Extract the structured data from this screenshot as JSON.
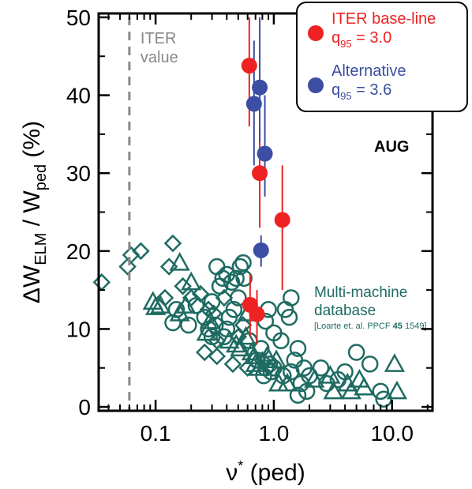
{
  "chart_data": {
    "type": "scatter",
    "x_scale": "log",
    "xlim": [
      0.033,
      22
    ],
    "ylim": [
      -0.5,
      50.5
    ],
    "x_ticks": [
      0.1,
      1.0,
      10.0
    ],
    "x_tick_labels": [
      "0.1",
      "1.0",
      "10.0"
    ],
    "y_ticks": [
      0,
      10,
      20,
      30,
      40,
      50
    ],
    "y_tick_labels": [
      "0",
      "10",
      "20",
      "30",
      "40",
      "50"
    ],
    "xlabel": "ν* (ped)",
    "ylabel": "ΔW_ELM / W_ped (%)",
    "grid": false,
    "legend_position": "top-right",
    "annotations": {
      "iter_value": [
        "ITER",
        "value"
      ],
      "iter_value_x": 0.06,
      "device": "AUG",
      "database_title": [
        "Multi-machine",
        "database"
      ],
      "database_ref_pre": "[Loarte et. al. PPCF ",
      "database_ref_bold": "45",
      "database_ref_post": " 1549]"
    },
    "colors": {
      "iter": "#ee2222",
      "alternative": "#3b4ea3",
      "database": "#1e6b62",
      "iter_line": "#888888"
    },
    "series": [
      {
        "name": "ITER base-line q95 = 3.0",
        "legend": {
          "title": "ITER base-line",
          "q": "q",
          "sub": "95",
          "val": " = 3.0"
        },
        "marker": "filled-circle",
        "points": [
          {
            "x": 0.62,
            "y": 43.8,
            "ylo": 36,
            "yhi": 50
          },
          {
            "x": 0.76,
            "y": 30.0,
            "ylo": 23,
            "yhi": 36
          },
          {
            "x": 1.18,
            "y": 24.0,
            "ylo": 15,
            "yhi": 31
          },
          {
            "x": 0.63,
            "y": 13.1,
            "ylo": 9,
            "yhi": 17
          },
          {
            "x": 0.72,
            "y": 11.9,
            "ylo": 8,
            "yhi": 15
          }
        ]
      },
      {
        "name": "Alternative q95 = 3.6",
        "legend": {
          "title": "Alternative",
          "q": "q",
          "sub": "95",
          "val": " = 3.6"
        },
        "marker": "filled-circle",
        "points": [
          {
            "x": 0.76,
            "y": 41.0,
            "ylo": 34,
            "yhi": 50
          },
          {
            "x": 0.68,
            "y": 38.9,
            "ylo": 31,
            "yhi": 47
          },
          {
            "x": 0.84,
            "y": 32.5,
            "ylo": 27,
            "yhi": 40
          },
          {
            "x": 0.78,
            "y": 20.1,
            "ylo": 18,
            "yhi": 22
          }
        ]
      },
      {
        "name": "Multi-machine database",
        "marker": "open",
        "points": [
          {
            "x": 0.035,
            "y": 16.0,
            "m": "diamond"
          },
          {
            "x": 0.062,
            "y": 19.5,
            "m": "diamond"
          },
          {
            "x": 0.075,
            "y": 20.0,
            "m": "diamond"
          },
          {
            "x": 0.058,
            "y": 18.0,
            "m": "diamond"
          },
          {
            "x": 0.14,
            "y": 21.0,
            "m": "diamond"
          },
          {
            "x": 0.13,
            "y": 18.0,
            "m": "diamond"
          },
          {
            "x": 0.095,
            "y": 13.5,
            "m": "triangle"
          },
          {
            "x": 0.11,
            "y": 13.0,
            "m": "triangle"
          },
          {
            "x": 0.12,
            "y": 14.0,
            "m": "diamond"
          },
          {
            "x": 0.1,
            "y": 12.8,
            "m": "triangle"
          },
          {
            "x": 0.15,
            "y": 12.5,
            "m": "circle"
          },
          {
            "x": 0.17,
            "y": 15.5,
            "m": "diamond"
          },
          {
            "x": 0.18,
            "y": 13.0,
            "m": "triangle"
          },
          {
            "x": 0.2,
            "y": 14.0,
            "m": "diamond"
          },
          {
            "x": 0.22,
            "y": 13.0,
            "m": "circle"
          },
          {
            "x": 0.16,
            "y": 12.0,
            "m": "triangle"
          },
          {
            "x": 0.14,
            "y": 10.8,
            "m": "circle"
          },
          {
            "x": 0.19,
            "y": 10.5,
            "m": "circle"
          },
          {
            "x": 0.24,
            "y": 14.5,
            "m": "diamond"
          },
          {
            "x": 0.2,
            "y": 16.0,
            "m": "triangle"
          },
          {
            "x": 0.16,
            "y": 18.5,
            "m": "triangle"
          },
          {
            "x": 0.26,
            "y": 11.5,
            "m": "circle"
          },
          {
            "x": 0.28,
            "y": 12.5,
            "m": "diamond"
          },
          {
            "x": 0.3,
            "y": 13.5,
            "m": "circle"
          },
          {
            "x": 0.29,
            "y": 11.0,
            "m": "triangle"
          },
          {
            "x": 0.32,
            "y": 10.5,
            "m": "circle"
          },
          {
            "x": 0.31,
            "y": 12.0,
            "m": "diamond"
          },
          {
            "x": 0.27,
            "y": 9.5,
            "m": "triangle"
          },
          {
            "x": 0.28,
            "y": 10.0,
            "m": "circle"
          },
          {
            "x": 0.3,
            "y": 9.0,
            "m": "circle"
          },
          {
            "x": 0.33,
            "y": 8.5,
            "m": "diamond"
          },
          {
            "x": 0.26,
            "y": 7.0,
            "m": "diamond"
          },
          {
            "x": 0.35,
            "y": 15.5,
            "m": "circle"
          },
          {
            "x": 0.37,
            "y": 16.5,
            "m": "circle"
          },
          {
            "x": 0.33,
            "y": 18.0,
            "m": "circle"
          },
          {
            "x": 0.38,
            "y": 14.0,
            "m": "diamond"
          },
          {
            "x": 0.4,
            "y": 17.0,
            "m": "circle"
          },
          {
            "x": 0.44,
            "y": 16.0,
            "m": "circle"
          },
          {
            "x": 0.48,
            "y": 16.5,
            "m": "circle"
          },
          {
            "x": 0.52,
            "y": 18.0,
            "m": "circle"
          },
          {
            "x": 0.55,
            "y": 18.5,
            "m": "circle"
          },
          {
            "x": 0.56,
            "y": 16.5,
            "m": "circle"
          },
          {
            "x": 0.5,
            "y": 14.0,
            "m": "circle"
          },
          {
            "x": 0.46,
            "y": 12.5,
            "m": "circle"
          },
          {
            "x": 0.42,
            "y": 11.5,
            "m": "circle"
          },
          {
            "x": 0.4,
            "y": 10.0,
            "m": "circle"
          },
          {
            "x": 0.38,
            "y": 9.0,
            "m": "circle"
          },
          {
            "x": 0.42,
            "y": 8.5,
            "m": "triangle"
          },
          {
            "x": 0.48,
            "y": 8.0,
            "m": "triangle"
          },
          {
            "x": 0.5,
            "y": 9.0,
            "m": "diamond"
          },
          {
            "x": 0.52,
            "y": 7.5,
            "m": "triangle"
          },
          {
            "x": 0.55,
            "y": 10.5,
            "m": "diamond"
          },
          {
            "x": 0.6,
            "y": 12.0,
            "m": "triangle"
          },
          {
            "x": 0.58,
            "y": 9.0,
            "m": "triangle"
          },
          {
            "x": 0.62,
            "y": 8.5,
            "m": "circle"
          },
          {
            "x": 0.65,
            "y": 7.0,
            "m": "triangle"
          },
          {
            "x": 0.68,
            "y": 6.5,
            "m": "triangle"
          },
          {
            "x": 0.7,
            "y": 5.5,
            "m": "triangle"
          },
          {
            "x": 0.72,
            "y": 6.0,
            "m": "circle"
          },
          {
            "x": 0.75,
            "y": 5.0,
            "m": "triangle"
          },
          {
            "x": 0.78,
            "y": 7.5,
            "m": "circle"
          },
          {
            "x": 0.8,
            "y": 6.0,
            "m": "diamond"
          },
          {
            "x": 0.85,
            "y": 5.0,
            "m": "circle"
          },
          {
            "x": 0.82,
            "y": 4.0,
            "m": "circle"
          },
          {
            "x": 0.88,
            "y": 6.5,
            "m": "triangle"
          },
          {
            "x": 0.92,
            "y": 5.5,
            "m": "circle"
          },
          {
            "x": 0.95,
            "y": 4.5,
            "m": "circle"
          },
          {
            "x": 1.0,
            "y": 5.0,
            "m": "circle"
          },
          {
            "x": 1.05,
            "y": 6.0,
            "m": "triangle"
          },
          {
            "x": 1.1,
            "y": 3.0,
            "m": "triangle"
          },
          {
            "x": 1.2,
            "y": 4.0,
            "m": "circle"
          },
          {
            "x": 1.3,
            "y": 3.0,
            "m": "triangle"
          },
          {
            "x": 1.4,
            "y": 4.5,
            "m": "circle"
          },
          {
            "x": 1.5,
            "y": 6.0,
            "m": "circle"
          },
          {
            "x": 1.6,
            "y": 7.5,
            "m": "circle"
          },
          {
            "x": 1.8,
            "y": 5.0,
            "m": "circle"
          },
          {
            "x": 1.7,
            "y": 3.0,
            "m": "circle"
          },
          {
            "x": 1.9,
            "y": 2.0,
            "m": "circle"
          },
          {
            "x": 2.0,
            "y": 4.0,
            "m": "circle"
          },
          {
            "x": 1.0,
            "y": 9.5,
            "m": "circle"
          },
          {
            "x": 1.15,
            "y": 8.5,
            "m": "circle"
          },
          {
            "x": 1.35,
            "y": 11.5,
            "m": "circle"
          },
          {
            "x": 1.4,
            "y": 14.0,
            "m": "circle"
          },
          {
            "x": 1.25,
            "y": 12.5,
            "m": "circle"
          },
          {
            "x": 0.9,
            "y": 12.5,
            "m": "circle"
          },
          {
            "x": 0.85,
            "y": 11.0,
            "m": "circle"
          },
          {
            "x": 0.6,
            "y": 5.0,
            "m": "diamond"
          },
          {
            "x": 0.45,
            "y": 5.5,
            "m": "diamond"
          },
          {
            "x": 0.33,
            "y": 6.5,
            "m": "diamond"
          },
          {
            "x": 2.5,
            "y": 5.0,
            "m": "circle"
          },
          {
            "x": 2.8,
            "y": 3.0,
            "m": "circle"
          },
          {
            "x": 3.0,
            "y": 4.0,
            "m": "triangle"
          },
          {
            "x": 3.2,
            "y": 2.0,
            "m": "triangle"
          },
          {
            "x": 3.5,
            "y": 3.5,
            "m": "circle"
          },
          {
            "x": 4.0,
            "y": 4.5,
            "m": "circle"
          },
          {
            "x": 4.2,
            "y": 3.0,
            "m": "triangle"
          },
          {
            "x": 4.5,
            "y": 2.0,
            "m": "triangle"
          },
          {
            "x": 5.0,
            "y": 7.0,
            "m": "circle"
          },
          {
            "x": 5.3,
            "y": 3.5,
            "m": "triangle"
          },
          {
            "x": 5.8,
            "y": 2.5,
            "m": "triangle"
          },
          {
            "x": 6.5,
            "y": 5.5,
            "m": "circle"
          },
          {
            "x": 8.0,
            "y": 2.0,
            "m": "circle"
          },
          {
            "x": 8.5,
            "y": 1.0,
            "m": "circle"
          },
          {
            "x": 10.5,
            "y": 5.5,
            "m": "triangle"
          },
          {
            "x": 11.0,
            "y": 2.0,
            "m": "triangle"
          },
          {
            "x": 2.2,
            "y": 3.5,
            "m": "triangle"
          },
          {
            "x": 1.6,
            "y": 1.5,
            "m": "circle"
          }
        ]
      }
    ]
  }
}
